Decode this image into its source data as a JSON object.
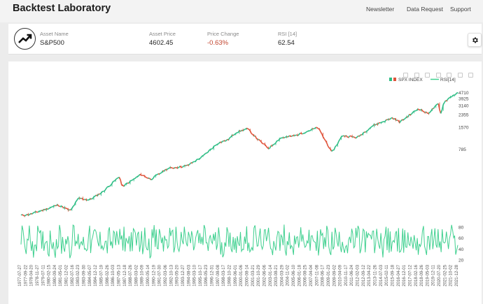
{
  "header": {
    "app_title": "Backtest Laboratory",
    "nav": [
      "Newsletter",
      "Data Request",
      "Support"
    ]
  },
  "asset": {
    "name_label": "Asset Name",
    "name": "S&P500",
    "price_label": "Asset Price",
    "price": "4602.45",
    "change_label": "Price Change",
    "change": "-0.63%",
    "rsi_label": "RSI [14]",
    "rsi": "62.54"
  },
  "icons": {
    "logo": "trending-up-icon",
    "settings": "gear-icon",
    "toolbar": [
      "camera-icon",
      "lasso-icon",
      "pencil-icon",
      "heart-icon",
      "eye-icon",
      "play-icon",
      "plus-square-icon"
    ]
  },
  "colors": {
    "up": "#2ebd85",
    "down": "#e0533a",
    "rsi": "#3fd08f",
    "negative_text": "#c2452f"
  },
  "chart_data": {
    "type": "line",
    "legend": [
      "SPX INDEX",
      "RSI[14]"
    ],
    "price_axis": {
      "scale": "log",
      "ticks": [
        4710,
        3925,
        3140,
        2355,
        1570,
        785
      ]
    },
    "rsi_axis": {
      "ticks": [
        80,
        60,
        40,
        20
      ]
    },
    "x_tick_labels": [
      "1977-07-27",
      "1977-09-22",
      "1978-04-20",
      "1978-11-27",
      "1979-07-11",
      "1980-02-15",
      "1980-09-24",
      "1981-05-01",
      "1981-12-02",
      "1982-07-16",
      "1983-02-23",
      "1983-09-30",
      "1984-05-07",
      "1984-12-12",
      "1985-07-19",
      "1986-02-26",
      "1986-10-03",
      "1987-05-13",
      "1987-12-18",
      "1988-07-26",
      "1989-03-02",
      "1989-10-09",
      "1990-05-14",
      "1990-12-19",
      "1991-07-30",
      "1992-03-06",
      "1992-10-13",
      "1993-05-20",
      "1993-12-27",
      "1994-08-03",
      "1995-03-10",
      "1995-10-17",
      "1996-05-23",
      "1996-12-31",
      "1997-08-08",
      "1998-03-17",
      "1998-10-22",
      "1999-06-01",
      "2000-01-06",
      "2000-08-14",
      "2001-03-21",
      "2001-10-29",
      "2002-06-06",
      "2003-01-14",
      "2003-08-21",
      "2004-03-29",
      "2004-11-02",
      "2005-06-10",
      "2006-01-18",
      "2006-08-25",
      "2007-04-04",
      "2007-11-08",
      "2008-06-17",
      "2009-01-23",
      "2009-09-02",
      "2010-04-09",
      "2010-11-17",
      "2011-06-24",
      "2012-02-03",
      "2012-09-12",
      "2013-04-22",
      "2013-11-26",
      "2014-07-03",
      "2015-02-11",
      "2015-09-18",
      "2016-04-27",
      "2016-12-01",
      "2017-07-12",
      "2018-02-16",
      "2018-09-26",
      "2019-05-03",
      "2019-12-11",
      "2020-07-20",
      "2021-02-25",
      "2021-10-02",
      "2021-12-28"
    ],
    "price_series": {
      "name": "SPX INDEX",
      "x": [
        "1977-07",
        "1978-06",
        "1980-01",
        "1981-05",
        "1982-08",
        "1983-06",
        "1984-07",
        "1985-11",
        "1987-08",
        "1987-11",
        "1989-10",
        "1990-10",
        "1992-06",
        "1994-06",
        "1996-01",
        "1997-08",
        "1998-08",
        "1999-06",
        "2000-08",
        "2001-09",
        "2002-10",
        "2003-12",
        "2005-06",
        "2007-10",
        "2008-11",
        "2009-03",
        "2010-04",
        "2011-10",
        "2013-05",
        "2015-05",
        "2016-02",
        "2018-01",
        "2018-12",
        "2020-02",
        "2020-03",
        "2020-08",
        "2021-06",
        "2021-12"
      ],
      "values": [
        95,
        98,
        115,
        133,
        110,
        165,
        155,
        200,
        330,
        235,
        350,
        300,
        420,
        460,
        615,
        950,
        1050,
        1330,
        1500,
        1060,
        800,
        1110,
        1200,
        1560,
        860,
        700,
        1210,
        1130,
        1650,
        2120,
        1850,
        2850,
        2420,
        3380,
        2240,
        3500,
        4280,
        4602
      ]
    },
    "rsi_series": {
      "name": "RSI[14]",
      "range": [
        20,
        80
      ],
      "mean": 55
    }
  }
}
